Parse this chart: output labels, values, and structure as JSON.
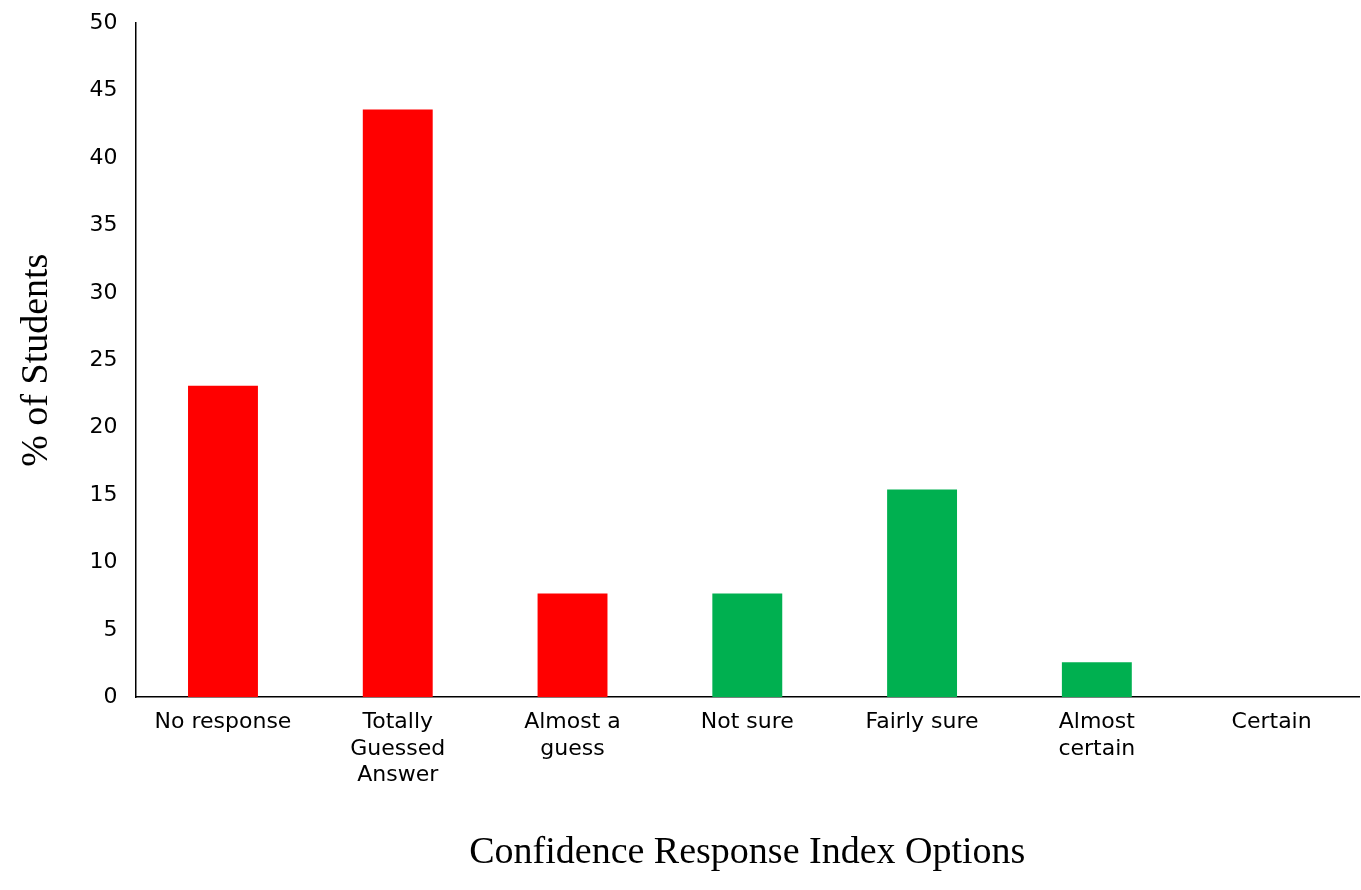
{
  "chart_data": {
    "type": "bar",
    "xlabel": "Confidence Response Index Options",
    "ylabel": "% of Students",
    "categories": [
      "No response",
      "Totally Guessed Answer",
      "Almost a guess",
      "Not sure",
      "Fairly sure",
      "Almost certain",
      "Certain"
    ],
    "values": [
      23.1,
      43.6,
      7.7,
      7.7,
      15.4,
      2.6,
      0
    ],
    "colors": [
      "#ff0000",
      "#ff0000",
      "#ff0000",
      "#00b050",
      "#00b050",
      "#00b050",
      "#00b050"
    ],
    "ylim": [
      0,
      50
    ],
    "yticks": [
      0,
      5,
      10,
      15,
      20,
      25,
      30,
      35,
      40,
      45,
      50
    ],
    "grid": false,
    "legend": false
  }
}
